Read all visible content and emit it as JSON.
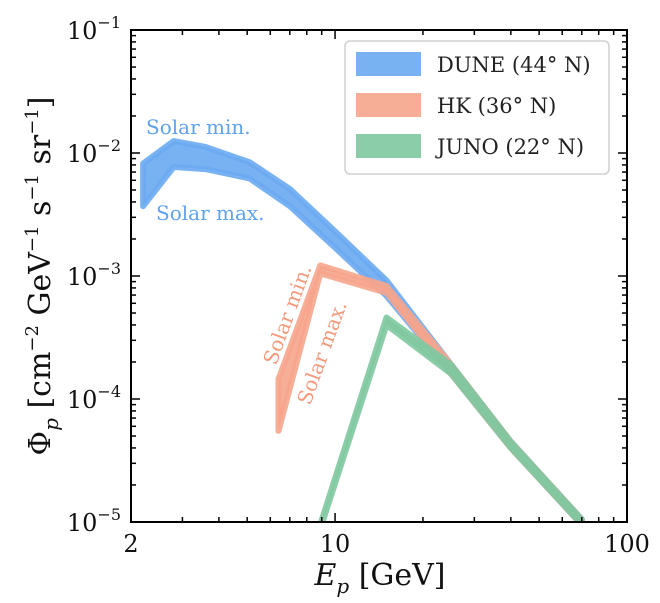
{
  "chart_data": {
    "type": "area",
    "x_scale": "log",
    "y_scale": "log",
    "xlim": [
      2,
      100
    ],
    "ylim": [
      1e-05,
      0.1
    ],
    "xlabel": "E_p [GeV]",
    "ylabel": "Φ_p [cm^-2 GeV^-1 s^-1 sr^-1]",
    "x_ticks": [
      {
        "value": 2,
        "label": "2"
      },
      {
        "value": 10,
        "label": "10"
      },
      {
        "value": 100,
        "label": "100"
      }
    ],
    "y_ticks": [
      {
        "value": 1e-05,
        "base": "10",
        "exp": "−5"
      },
      {
        "value": 0.0001,
        "base": "10",
        "exp": "−4"
      },
      {
        "value": 0.001,
        "base": "10",
        "exp": "−3"
      },
      {
        "value": 0.01,
        "base": "10",
        "exp": "−2"
      },
      {
        "value": 0.1,
        "base": "10",
        "exp": "−1"
      }
    ],
    "legend_position": "top-right",
    "series": [
      {
        "name": "DUNE (44° N)",
        "color": "#6aaaf2",
        "x": [
          2.2,
          2.8,
          3.6,
          5.1,
          7.0,
          10.0,
          15.0,
          25.0,
          40.0,
          70.0
        ],
        "upper": [
          0.0082,
          0.0125,
          0.0112,
          0.0084,
          0.0051,
          0.0023,
          0.00092,
          0.00019,
          4.5e-05,
          1.05e-05
        ],
        "lower": [
          0.0037,
          0.0077,
          0.0074,
          0.0062,
          0.0037,
          0.0017,
          0.00069,
          0.00016,
          4e-05,
          9.5e-06
        ]
      },
      {
        "name": "HK (36° N)",
        "color": "#f6a58c",
        "x": [
          6.4,
          8.9,
          15.0,
          25.0,
          40.0,
          70.0
        ],
        "upper": [
          0.000145,
          0.00122,
          0.00083,
          0.00019,
          4.5e-05,
          1.05e-05
        ],
        "lower": [
          5.5e-05,
          0.00105,
          0.00073,
          0.00016,
          4e-05,
          9.5e-06
        ]
      },
      {
        "name": "JUNO (22° N)",
        "color": "#7fc8a0",
        "x": [
          8.9,
          15.0,
          25.0,
          40.0,
          70.0
        ],
        "upper": [
          9.5e-06,
          0.00046,
          0.00019,
          4.5e-05,
          1.05e-05
        ],
        "lower": [
          8.8e-06,
          0.0004,
          0.00016,
          4e-05,
          9.5e-06
        ]
      }
    ],
    "annotations": {
      "dune_min": "Solar min.",
      "dune_max": "Solar max.",
      "hk_min": "Solar min.",
      "hk_max": "Solar max."
    }
  }
}
